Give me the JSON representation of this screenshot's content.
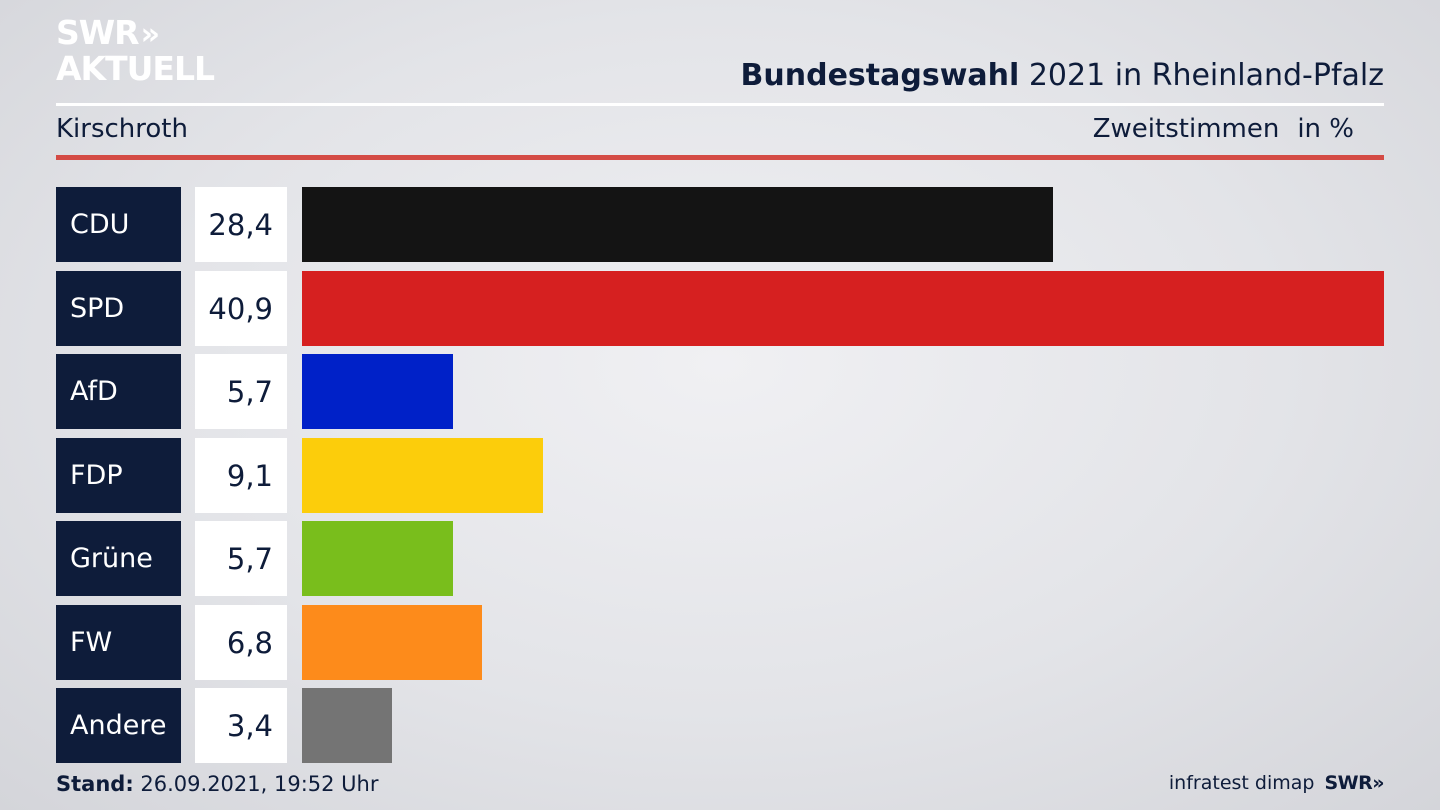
{
  "brand": {
    "line1": "SWR",
    "arrows": "»",
    "line2": "AKTUELL"
  },
  "header": {
    "title_strong": "Bundestagswahl",
    "title_rest": " 2021 in Rheinland-Pfalz",
    "region": "Kirschroth",
    "metric": "Zweitstimmen",
    "unit": "in %"
  },
  "chart_data": {
    "type": "bar",
    "orientation": "horizontal",
    "title": "Bundestagswahl 2021 in Rheinland-Pfalz",
    "categories": [
      "CDU",
      "SPD",
      "AfD",
      "FDP",
      "Grüne",
      "FW",
      "Andere"
    ],
    "values": [
      28.4,
      40.9,
      5.7,
      9.1,
      5.7,
      6.8,
      3.4
    ],
    "value_labels": [
      "28,4",
      "40,9",
      "5,7",
      "9,1",
      "5,7",
      "6,8",
      "3,4"
    ],
    "colors": [
      "#141414",
      "#d62020",
      "#0021c8",
      "#fccd0b",
      "#79be1c",
      "#fd8b1b",
      "#747474"
    ],
    "xlim": [
      0,
      40.9
    ],
    "grid": false,
    "legend": "none"
  },
  "footer": {
    "stand_label": "Stand:",
    "stand_value": " 26.09.2021, 19:52 Uhr",
    "source": "infratest dimap",
    "logo": "SWR»"
  }
}
